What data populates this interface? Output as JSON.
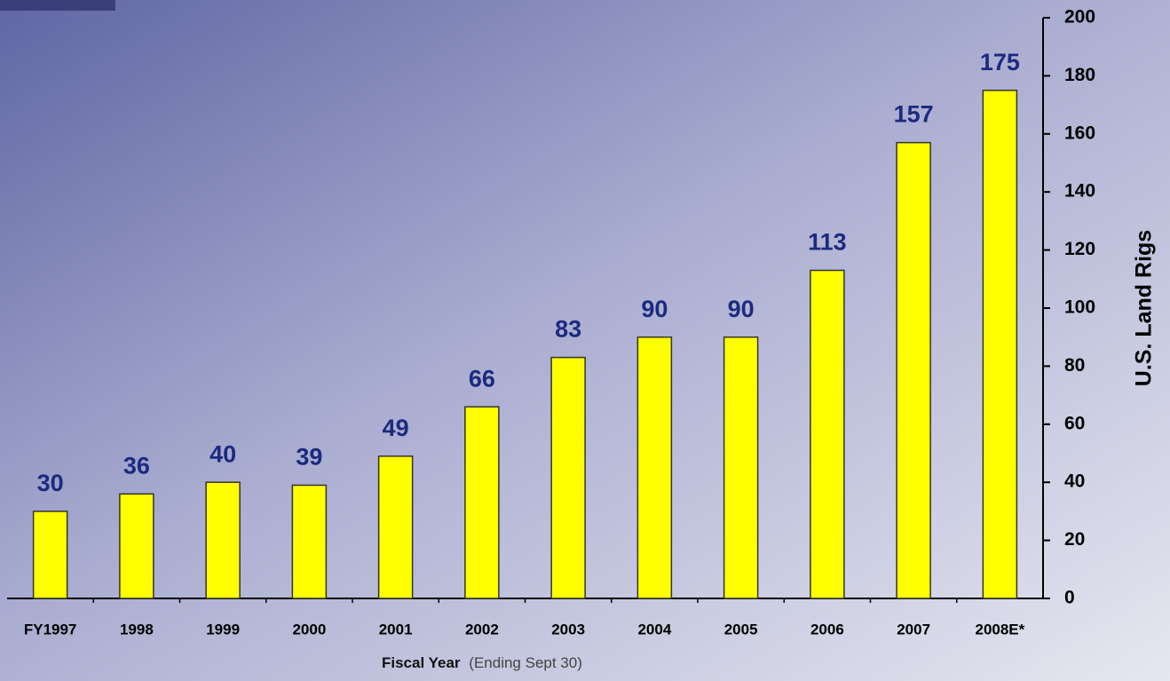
{
  "chart_data": {
    "type": "bar",
    "categories": [
      "FY1997",
      "1998",
      "1999",
      "2000",
      "2001",
      "2002",
      "2003",
      "2004",
      "2005",
      "2006",
      "2007",
      "2008E*"
    ],
    "values": [
      30,
      36,
      40,
      39,
      49,
      66,
      83,
      90,
      90,
      113,
      157,
      175
    ],
    "color": "#ffff00",
    "value_label_color": "#1c2a80",
    "ylim": [
      0,
      200
    ],
    "yticks": [
      0,
      20,
      40,
      60,
      80,
      100,
      120,
      140,
      160,
      180,
      200
    ],
    "ylabel": "U.S. Land Rigs",
    "xlabel": "Fiscal Year",
    "xlabel_note": "(Ending Sept 30)",
    "grid": false
  }
}
